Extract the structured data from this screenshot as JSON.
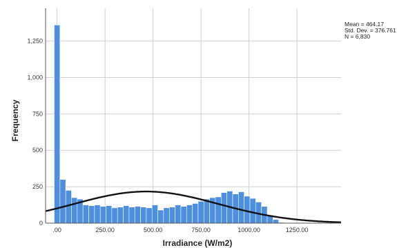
{
  "chart_data": {
    "type": "bar",
    "subtype": "histogram-with-normal-curve",
    "xlabel": "Irradiance (W/m2)",
    "ylabel": "Frequency",
    "xlim": [
      -60,
      1480
    ],
    "ylim": [
      0,
      1475
    ],
    "x_ticks": [
      {
        "value": 0,
        "label": ".00"
      },
      {
        "value": 250,
        "label": "250.00"
      },
      {
        "value": 500,
        "label": "500.00"
      },
      {
        "value": 750,
        "label": "750.00"
      },
      {
        "value": 1000,
        "label": "1000.00"
      },
      {
        "value": 1250,
        "label": "1250.00"
      }
    ],
    "y_ticks": [
      {
        "value": 0,
        "label": "0"
      },
      {
        "value": 250,
        "label": "250"
      },
      {
        "value": 500,
        "label": "500"
      },
      {
        "value": 750,
        "label": "750"
      },
      {
        "value": 1000,
        "label": "1,000"
      },
      {
        "value": 1250,
        "label": "1,250"
      }
    ],
    "grid": true,
    "bin_start": -15,
    "bin_width": 30,
    "values": [
      1360,
      300,
      225,
      175,
      165,
      125,
      120,
      125,
      115,
      120,
      105,
      110,
      120,
      110,
      115,
      110,
      105,
      125,
      90,
      105,
      110,
      125,
      115,
      125,
      135,
      150,
      165,
      175,
      180,
      210,
      220,
      200,
      215,
      185,
      170,
      145,
      115,
      55,
      25,
      5,
      2,
      1
    ],
    "bar_color": "#4f8fe0",
    "curve_color": "#111111",
    "stats": {
      "mean": 464.17,
      "std_dev": 376.761,
      "n": 6830,
      "mean_text": "Mean = 464.17",
      "std_text": "Std. Dev. = 376.761",
      "n_text": "N = 6,830"
    }
  }
}
